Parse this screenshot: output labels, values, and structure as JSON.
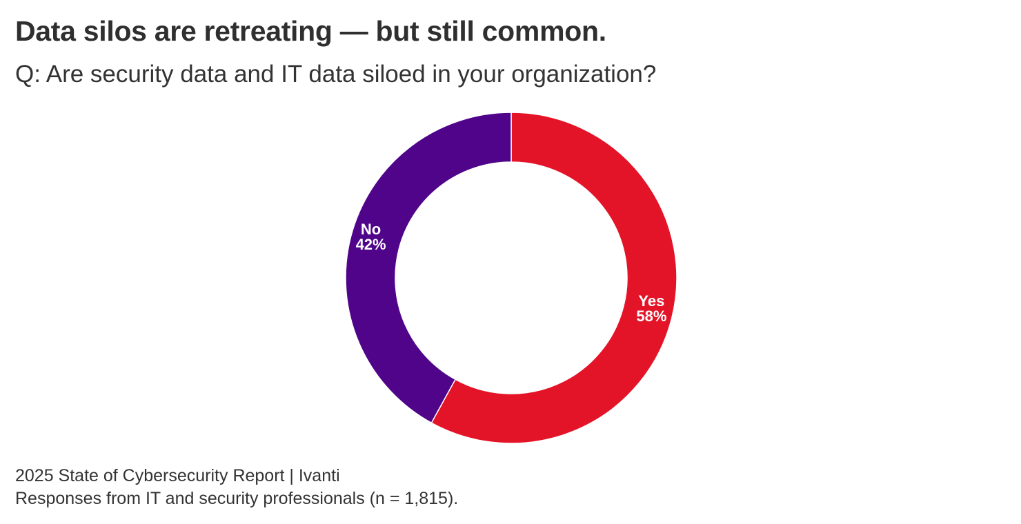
{
  "header": {
    "title": "Data silos are retreating — but still common.",
    "subtitle": "Q: Are security data and IT data siloed in your organization?"
  },
  "footer": {
    "source": "2025 State of Cybersecurity Report | Ivanti",
    "note": "Responses from IT and security professionals (n = 1,815)."
  },
  "chart_data": {
    "type": "pie",
    "donut": true,
    "start": "top",
    "direction": "clockwise",
    "slices": [
      {
        "label": "Yes",
        "value": 58,
        "display": "58%",
        "color": "#e41428"
      },
      {
        "label": "No",
        "value": 42,
        "display": "42%",
        "color": "#4f0489"
      }
    ]
  }
}
